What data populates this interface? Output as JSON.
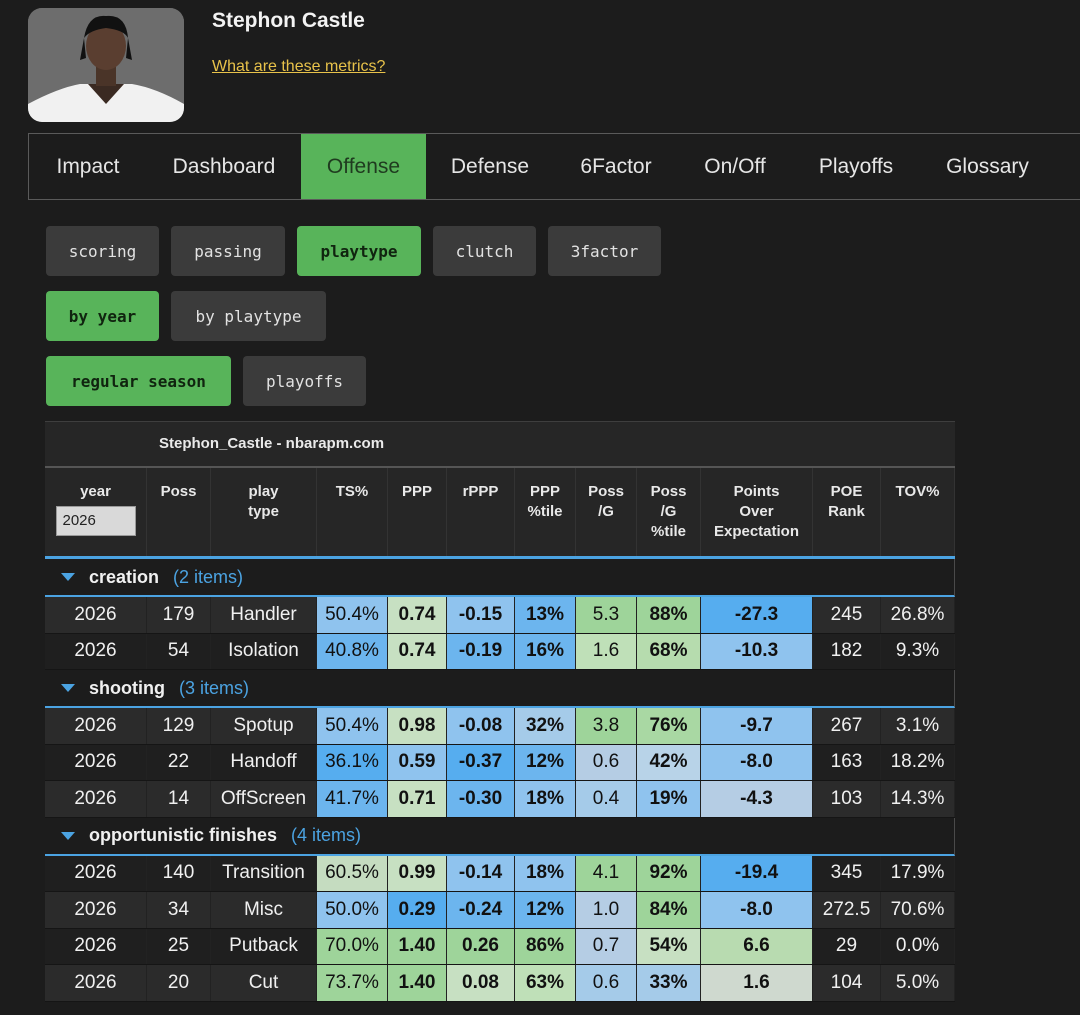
{
  "player": {
    "name": "Stephon Castle",
    "metrics_link": "What are these metrics?"
  },
  "tabs": [
    {
      "label": "Impact",
      "active": false
    },
    {
      "label": "Dashboard",
      "active": false
    },
    {
      "label": "Offense",
      "active": true
    },
    {
      "label": "Defense",
      "active": false
    },
    {
      "label": "6Factor",
      "active": false
    },
    {
      "label": "On/Off",
      "active": false
    },
    {
      "label": "Playoffs",
      "active": false
    },
    {
      "label": "Glossary",
      "active": false
    }
  ],
  "subtabs": [
    {
      "label": "scoring",
      "active": false
    },
    {
      "label": "passing",
      "active": false
    },
    {
      "label": "playtype",
      "active": true
    },
    {
      "label": "clutch",
      "active": false
    },
    {
      "label": "3factor",
      "active": false
    }
  ],
  "view_toggle": [
    {
      "label": "by year",
      "active": true
    },
    {
      "label": "by playtype",
      "active": false
    }
  ],
  "season_toggle": [
    {
      "label": "regular season",
      "active": true
    },
    {
      "label": "playoffs",
      "active": false
    }
  ],
  "table": {
    "caption": "Stephon_Castle - nbarapm.com",
    "year_filter": "2026",
    "columns": [
      "year",
      "Poss",
      "play\ntype",
      "TS%",
      "PPP",
      "rPPP",
      "PPP\n%tile",
      "Poss\n/G",
      "Poss\n/G\n%tile",
      "Points\nOver\nExpectation",
      "POE\nRank",
      "TOV%"
    ],
    "groups": [
      {
        "name": "creation",
        "count": "(2 items)",
        "rows": [
          {
            "cells": [
              "2026",
              "179",
              "Handler",
              "50.4%",
              "0.74",
              "-0.15",
              "13%",
              "5.3",
              "88%",
              "-27.3",
              "245",
              "26.8%"
            ],
            "colors": [
              "#2b2b2b",
              "#2b2b2b",
              "#2b2b2b",
              "#8fc3ee",
              "#c7e0c2",
              "#8fc3ee",
              "#6cb5ee",
              "#9ed49a",
              "#9ed49a",
              "#56adef",
              "#2b2b2b",
              "#2b2b2b"
            ]
          },
          {
            "cells": [
              "2026",
              "54",
              "Isolation",
              "40.8%",
              "0.74",
              "-0.19",
              "16%",
              "1.6",
              "68%",
              "-10.3",
              "182",
              "9.3%"
            ],
            "colors": [
              "#1f1f1f",
              "#1f1f1f",
              "#1f1f1f",
              "#6cb5ee",
              "#c7e0c2",
              "#6cb5ee",
              "#6cb5ee",
              "#bfe0b8",
              "#b6dcae",
              "#8fc3ee",
              "#1f1f1f",
              "#1f1f1f"
            ]
          }
        ]
      },
      {
        "name": "shooting",
        "count": "(3 items)",
        "rows": [
          {
            "cells": [
              "2026",
              "129",
              "Spotup",
              "50.4%",
              "0.98",
              "-0.08",
              "32%",
              "3.8",
              "76%",
              "-9.7",
              "267",
              "3.1%"
            ],
            "colors": [
              "#2b2b2b",
              "#2b2b2b",
              "#2b2b2b",
              "#8fc3ee",
              "#c7e0c2",
              "#8fc3ee",
              "#a5cbe9",
              "#9ed49a",
              "#a9d8a3",
              "#8fc3ee",
              "#2b2b2b",
              "#2b2b2b"
            ]
          },
          {
            "cells": [
              "2026",
              "22",
              "Handoff",
              "36.1%",
              "0.59",
              "-0.37",
              "12%",
              "0.6",
              "42%",
              "-8.0",
              "163",
              "18.2%"
            ],
            "colors": [
              "#1f1f1f",
              "#1f1f1f",
              "#1f1f1f",
              "#56adef",
              "#8fc3ee",
              "#56adef",
              "#6cb5ee",
              "#b5cde4",
              "#b8d3e8",
              "#8fc3ee",
              "#1f1f1f",
              "#1f1f1f"
            ]
          },
          {
            "cells": [
              "2026",
              "14",
              "OffScreen",
              "41.7%",
              "0.71",
              "-0.30",
              "18%",
              "0.4",
              "19%",
              "-4.3",
              "103",
              "14.3%"
            ],
            "colors": [
              "#2b2b2b",
              "#2b2b2b",
              "#2b2b2b",
              "#6cb5ee",
              "#c7e0c2",
              "#6cb5ee",
              "#8fc3ee",
              "#a5cbe9",
              "#8fc3ee",
              "#b5cde4",
              "#2b2b2b",
              "#2b2b2b"
            ]
          }
        ]
      },
      {
        "name": "opportunistic finishes",
        "count": "(4 items)",
        "rows": [
          {
            "cells": [
              "2026",
              "140",
              "Transition",
              "60.5%",
              "0.99",
              "-0.14",
              "18%",
              "4.1",
              "92%",
              "-19.4",
              "345",
              "17.9%"
            ],
            "colors": [
              "#1f1f1f",
              "#1f1f1f",
              "#1f1f1f",
              "#c5dcc0",
              "#c7e0c2",
              "#8fc3ee",
              "#8fc3ee",
              "#9ed49a",
              "#9ed49a",
              "#56adef",
              "#1f1f1f",
              "#1f1f1f"
            ]
          },
          {
            "cells": [
              "2026",
              "34",
              "Misc",
              "50.0%",
              "0.29",
              "-0.24",
              "12%",
              "1.0",
              "84%",
              "-8.0",
              "272.5",
              "70.6%"
            ],
            "colors": [
              "#2b2b2b",
              "#2b2b2b",
              "#2b2b2b",
              "#8fc3ee",
              "#56adef",
              "#6cb5ee",
              "#6cb5ee",
              "#b5cde4",
              "#9ed49a",
              "#8fc3ee",
              "#2b2b2b",
              "#2b2b2b"
            ]
          },
          {
            "cells": [
              "2026",
              "25",
              "Putback",
              "70.0%",
              "1.40",
              "0.26",
              "86%",
              "0.7",
              "54%",
              "6.6",
              "29",
              "0.0%"
            ],
            "colors": [
              "#1f1f1f",
              "#1f1f1f",
              "#1f1f1f",
              "#9ed49a",
              "#9ed49a",
              "#9ed49a",
              "#9ed49a",
              "#b5cde4",
              "#c7e0c2",
              "#b8dbb0",
              "#1f1f1f",
              "#1f1f1f"
            ]
          },
          {
            "cells": [
              "2026",
              "20",
              "Cut",
              "73.7%",
              "1.40",
              "0.08",
              "63%",
              "0.6",
              "33%",
              "1.6",
              "104",
              "5.0%"
            ],
            "colors": [
              "#2b2b2b",
              "#2b2b2b",
              "#2b2b2b",
              "#9ed49a",
              "#9ed49a",
              "#c7e0c2",
              "#bfe0b8",
              "#a5cbe9",
              "#a5cbe9",
              "#cfd9cf",
              "#2b2b2b",
              "#2b2b2b"
            ]
          }
        ]
      }
    ]
  }
}
